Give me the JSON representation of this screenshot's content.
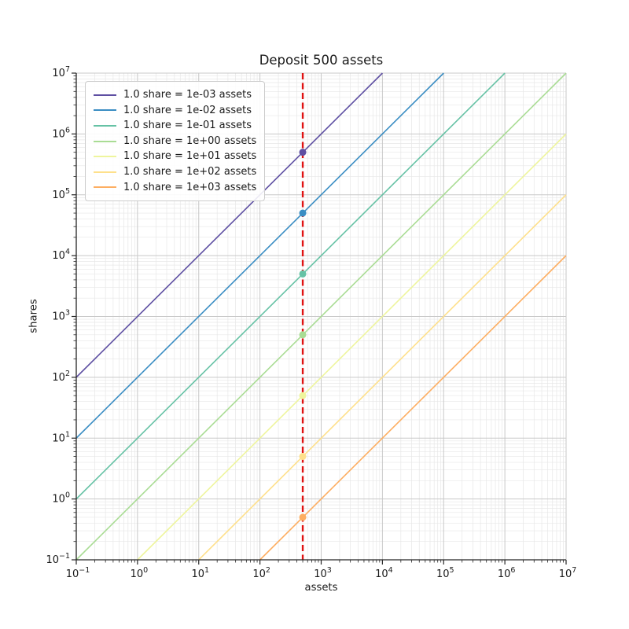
{
  "title": "Deposit 500 assets",
  "chart_data": {
    "type": "line",
    "title": "Deposit 500 assets",
    "xlabel": "assets",
    "ylabel": "shares",
    "x_scale": "log",
    "y_scale": "log",
    "xlim": [
      0.1,
      10000000
    ],
    "ylim": [
      0.1,
      10000000
    ],
    "x_tick_exponents": [
      -1,
      0,
      1,
      2,
      3,
      4,
      5,
      6,
      7
    ],
    "y_tick_exponents": [
      -1,
      0,
      1,
      2,
      3,
      4,
      5,
      6,
      7
    ],
    "grid": "both",
    "legend_position": "upper left",
    "deposit_assets": 500,
    "series": [
      {
        "label": "1.0 share = 1e-03 assets",
        "assets_per_share": 0.001,
        "color": "#5e4fa2",
        "point": {
          "assets": 500,
          "shares": 500000
        }
      },
      {
        "label": "1.0 share = 1e-02 assets",
        "assets_per_share": 0.01,
        "color": "#3a8dc3",
        "point": {
          "assets": 500,
          "shares": 50000
        }
      },
      {
        "label": "1.0 share = 1e-01 assets",
        "assets_per_share": 0.1,
        "color": "#66c2a5",
        "point": {
          "assets": 500,
          "shares": 5000
        }
      },
      {
        "label": "1.0 share = 1e+00 assets",
        "assets_per_share": 1,
        "color": "#a9dc94",
        "point": {
          "assets": 500,
          "shares": 500
        }
      },
      {
        "label": "1.0 share = 1e+01 assets",
        "assets_per_share": 10,
        "color": "#eef59d",
        "point": {
          "assets": 500,
          "shares": 50
        }
      },
      {
        "label": "1.0 share = 1e+02 assets",
        "assets_per_share": 100,
        "color": "#fee08b",
        "point": {
          "assets": 500,
          "shares": 5
        }
      },
      {
        "label": "1.0 share = 1e+03 assets",
        "assets_per_share": 1000,
        "color": "#fdae61",
        "point": {
          "assets": 500,
          "shares": 0.5
        }
      }
    ],
    "vline": {
      "x": 500,
      "color": "#e01212",
      "style": "dashed"
    },
    "colors": {
      "grid_major": "#c8c8c8",
      "grid_minor": "#e7e7e7",
      "spine": "#262626",
      "text": "#1a1a1a",
      "legend_border": "#cccccc"
    }
  }
}
